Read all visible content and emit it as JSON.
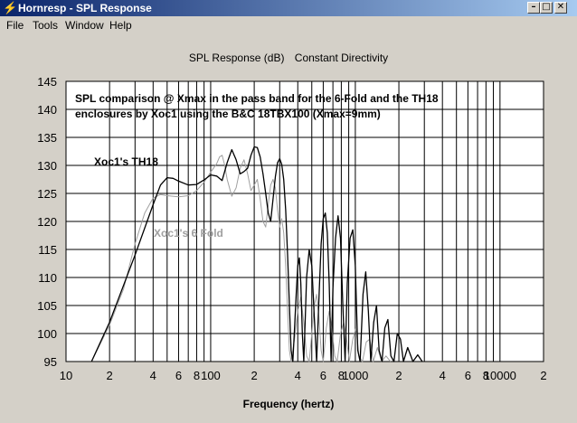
{
  "window": {
    "title": "Hornresp - SPL Response",
    "icon": "lightning-icon",
    "controls": [
      "minimize-icon",
      "maximize-icon",
      "close-icon"
    ]
  },
  "menu": [
    "File",
    "Tools",
    "Window",
    "Help"
  ],
  "chart_title": {
    "left": "SPL Response (dB)",
    "right": "Constant Directivity"
  },
  "chart_data": {
    "type": "line",
    "title": "SPL Response (dB)",
    "subtitle": "Constant Directivity",
    "annotation": [
      "SPL comparison @ Xmax in the pass band for the 6-Fold and the TH18",
      "enclosures by Xoc1 using the B&C 18TBX100 (Xmax=9mm)"
    ],
    "xlabel": "Frequency (hertz)",
    "ylabel": "",
    "xscale": "log",
    "xlim": [
      10,
      20000
    ],
    "ylim": [
      95,
      145
    ],
    "yticks": [
      "145",
      "140",
      "135",
      "130",
      "125",
      "120",
      "115",
      "110",
      "105",
      "100",
      "95"
    ],
    "xticks": [
      {
        "value": 10,
        "label": "10"
      },
      {
        "value": 20,
        "label": "2"
      },
      {
        "value": 40,
        "label": "4"
      },
      {
        "value": 60,
        "label": "6"
      },
      {
        "value": 80,
        "label": "8"
      },
      {
        "value": 100,
        "label": "100"
      },
      {
        "value": 200,
        "label": "2"
      },
      {
        "value": 400,
        "label": "4"
      },
      {
        "value": 600,
        "label": "6"
      },
      {
        "value": 800,
        "label": "8"
      },
      {
        "value": 1000,
        "label": "1000"
      },
      {
        "value": 2000,
        "label": "2"
      },
      {
        "value": 4000,
        "label": "4"
      },
      {
        "value": 6000,
        "label": "6"
      },
      {
        "value": 8000,
        "label": "8"
      },
      {
        "value": 10000,
        "label": "10000"
      },
      {
        "value": 20000,
        "label": "2"
      }
    ],
    "grid": true,
    "series": [
      {
        "name": "Xoc1's TH18",
        "color": "#000000",
        "points": [
          [
            15,
            95
          ],
          [
            20,
            102
          ],
          [
            30,
            114
          ],
          [
            40,
            123
          ],
          [
            45,
            126.5
          ],
          [
            50,
            127.8
          ],
          [
            55,
            127.7
          ],
          [
            60,
            127.2
          ],
          [
            70,
            126.5
          ],
          [
            80,
            126.6
          ],
          [
            90,
            127.4
          ],
          [
            100,
            128.3
          ],
          [
            110,
            128.1
          ],
          [
            120,
            127.3
          ],
          [
            130,
            130.5
          ],
          [
            140,
            132.8
          ],
          [
            150,
            131
          ],
          [
            160,
            128.5
          ],
          [
            170,
            128.9
          ],
          [
            180,
            129.5
          ],
          [
            190,
            131.8
          ],
          [
            200,
            133.3
          ],
          [
            210,
            133.2
          ],
          [
            220,
            131.5
          ],
          [
            230,
            128.5
          ],
          [
            240,
            125
          ],
          [
            250,
            121.5
          ],
          [
            260,
            120
          ],
          [
            270,
            124
          ],
          [
            280,
            128
          ],
          [
            290,
            130.5
          ],
          [
            300,
            131.2
          ],
          [
            310,
            130.2
          ],
          [
            320,
            127.5
          ],
          [
            330,
            122
          ],
          [
            340,
            114
          ],
          [
            350,
            105
          ],
          [
            360,
            97
          ],
          [
            370,
            95
          ],
          [
            380,
            101
          ],
          [
            390,
            107
          ],
          [
            400,
            112
          ],
          [
            410,
            113.5
          ],
          [
            420,
            109
          ],
          [
            430,
            100
          ],
          [
            440,
            95
          ],
          [
            450,
            102
          ],
          [
            460,
            110
          ],
          [
            480,
            115
          ],
          [
            500,
            112
          ],
          [
            520,
            103
          ],
          [
            540,
            95
          ],
          [
            560,
            106
          ],
          [
            580,
            116
          ],
          [
            600,
            120.5
          ],
          [
            620,
            121.5
          ],
          [
            640,
            118
          ],
          [
            660,
            109
          ],
          [
            680,
            95
          ],
          [
            700,
            108
          ],
          [
            730,
            117
          ],
          [
            760,
            121
          ],
          [
            790,
            117
          ],
          [
            820,
            105
          ],
          [
            850,
            95
          ],
          [
            880,
            109
          ],
          [
            920,
            117
          ],
          [
            960,
            118.5
          ],
          [
            1000,
            112
          ],
          [
            1040,
            97
          ],
          [
            1080,
            95
          ],
          [
            1130,
            107
          ],
          [
            1180,
            111
          ],
          [
            1230,
            104
          ],
          [
            1280,
            95
          ],
          [
            1340,
            102
          ],
          [
            1400,
            105
          ],
          [
            1460,
            97
          ],
          [
            1530,
            95
          ],
          [
            1600,
            101
          ],
          [
            1680,
            102.5
          ],
          [
            1760,
            96
          ],
          [
            1850,
            95
          ],
          [
            1950,
            100
          ],
          [
            2050,
            99
          ],
          [
            2150,
            95
          ],
          [
            2300,
            97.5
          ],
          [
            2500,
            95
          ],
          [
            2700,
            96.2
          ],
          [
            2900,
            95
          ]
        ]
      },
      {
        "name": "Xoc1's 6 Fold",
        "color": "#a0a0a0",
        "points": [
          [
            15,
            95
          ],
          [
            20,
            101.5
          ],
          [
            25,
            108
          ],
          [
            30,
            116
          ],
          [
            35,
            121.5
          ],
          [
            40,
            124.2
          ],
          [
            45,
            124.8
          ],
          [
            50,
            124.6
          ],
          [
            60,
            124.4
          ],
          [
            70,
            124.6
          ],
          [
            80,
            125.5
          ],
          [
            90,
            127
          ],
          [
            100,
            128.8
          ],
          [
            110,
            130.3
          ],
          [
            115,
            131.5
          ],
          [
            120,
            131.8
          ],
          [
            125,
            130
          ],
          [
            130,
            127.5
          ],
          [
            140,
            124.5
          ],
          [
            150,
            126
          ],
          [
            160,
            129.5
          ],
          [
            170,
            131
          ],
          [
            180,
            128.5
          ],
          [
            190,
            125.5
          ],
          [
            200,
            126.5
          ],
          [
            210,
            127.5
          ],
          [
            220,
            124
          ],
          [
            230,
            120
          ],
          [
            240,
            119
          ],
          [
            250,
            123
          ],
          [
            260,
            126.5
          ],
          [
            270,
            127.5
          ],
          [
            280,
            126
          ],
          [
            290,
            122
          ],
          [
            300,
            119
          ],
          [
            310,
            120.5
          ],
          [
            320,
            118
          ],
          [
            330,
            112
          ],
          [
            340,
            104
          ],
          [
            350,
            97
          ],
          [
            360,
            95
          ],
          [
            380,
            99
          ],
          [
            400,
            104
          ],
          [
            420,
            106.5
          ],
          [
            440,
            102
          ],
          [
            460,
            96
          ],
          [
            480,
            95
          ],
          [
            500,
            100
          ],
          [
            520,
            105
          ],
          [
            540,
            107
          ],
          [
            560,
            103
          ],
          [
            580,
            97
          ],
          [
            600,
            95
          ],
          [
            630,
            101
          ],
          [
            660,
            104
          ],
          [
            690,
            101
          ],
          [
            720,
            96
          ],
          [
            750,
            95
          ],
          [
            790,
            100
          ],
          [
            830,
            102
          ],
          [
            870,
            99
          ],
          [
            910,
            95
          ],
          [
            960,
            99
          ],
          [
            1010,
            101
          ],
          [
            1060,
            96
          ],
          [
            1120,
            95
          ],
          [
            1190,
            98.5
          ],
          [
            1260,
            99
          ],
          [
            1330,
            95
          ],
          [
            1420,
            97.5
          ],
          [
            1520,
            95
          ],
          [
            1630,
            96
          ],
          [
            1750,
            95
          ]
        ]
      }
    ],
    "series_labels": [
      {
        "text": "Xoc1's TH18",
        "color": "#000000"
      },
      {
        "text": "Xoc1's 6 Fold",
        "color": "#a0a0a0"
      }
    ]
  }
}
